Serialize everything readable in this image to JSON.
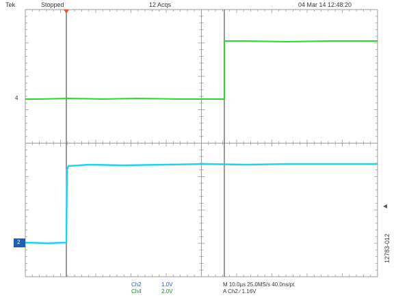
{
  "header": {
    "trig_label": "Tek",
    "status": "Stopped",
    "acqs": "12 Acqs",
    "datetime": "04 Mar 14 12:48:20"
  },
  "channels": {
    "ch2": {
      "name": "Ch2",
      "scale": "1.0V",
      "color": "#19d3f0"
    },
    "ch4": {
      "name": "Ch4",
      "scale": "2.0V",
      "color": "#22dd22"
    }
  },
  "markers": {
    "ch4": "4",
    "ch2": "2"
  },
  "timebase": {
    "line1": "M 10.0µs  25.0MS/s    40.0ns/pt",
    "line2": "A  Ch2  ∕  1.16V"
  },
  "figure_id": "12783-012",
  "colors": {
    "screen_bg": "#ffffff",
    "grid": "#9a9a9a",
    "ch2_trace": "#19d3f0",
    "ch4_trace": "#22dd22",
    "cursor": "#555555"
  }
}
